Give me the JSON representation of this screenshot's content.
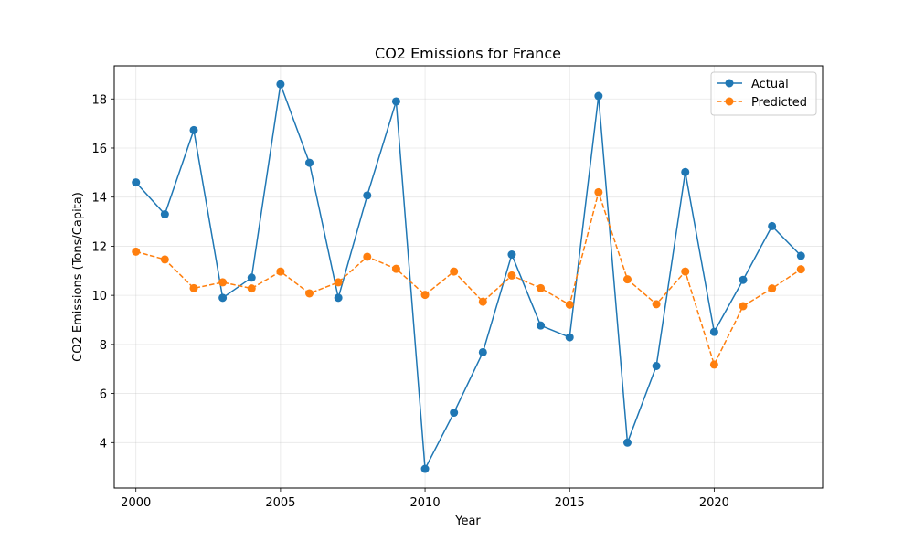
{
  "chart_data": {
    "type": "line",
    "title": "CO2 Emissions for France",
    "xlabel": "Year",
    "ylabel": "CO2 Emissions (Tons/Capita)",
    "xlim": [
      1999.25,
      2023.75
    ],
    "ylim": [
      2.15,
      19.35
    ],
    "xticks": [
      2000,
      2005,
      2010,
      2015,
      2020
    ],
    "yticks": [
      4,
      6,
      8,
      10,
      12,
      14,
      16,
      18
    ],
    "grid": true,
    "legend_position": "top-right",
    "x": [
      2000,
      2001,
      2002,
      2003,
      2004,
      2005,
      2006,
      2007,
      2008,
      2009,
      2010,
      2011,
      2012,
      2013,
      2014,
      2015,
      2016,
      2017,
      2018,
      2019,
      2020,
      2021,
      2022,
      2023
    ],
    "series": [
      {
        "name": "Actual",
        "color": "#1f77b4",
        "linestyle": "solid",
        "values": [
          14.6,
          13.3,
          16.73,
          9.9,
          10.72,
          18.6,
          15.4,
          9.9,
          14.07,
          17.9,
          2.93,
          5.22,
          7.68,
          11.66,
          8.77,
          8.29,
          18.12,
          4.0,
          7.12,
          15.02,
          8.51,
          10.63,
          12.82,
          11.61
        ]
      },
      {
        "name": "Predicted",
        "color": "#ff7f0e",
        "linestyle": "dashed",
        "values": [
          11.78,
          11.46,
          10.29,
          10.53,
          10.28,
          10.97,
          10.08,
          10.53,
          11.57,
          11.08,
          10.02,
          10.97,
          9.74,
          10.81,
          10.29,
          9.62,
          14.2,
          10.65,
          9.64,
          10.97,
          7.18,
          9.56,
          10.28,
          11.06
        ]
      }
    ]
  }
}
